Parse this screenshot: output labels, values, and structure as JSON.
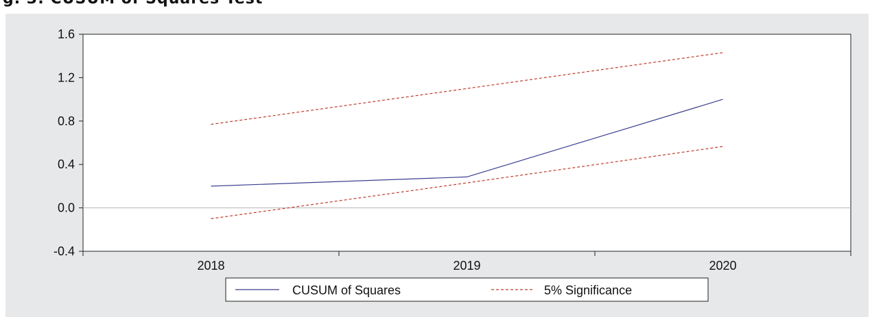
{
  "figure": {
    "caption_fragment": "g. 3: CUSUM of Squares Test"
  },
  "colors": {
    "panel_background": "#e7e8ea",
    "plot_background": "#ffffff",
    "cusum_line": "#3b3f8f",
    "significance_line": "#c0392b",
    "zero_line": "#b5b5b5"
  },
  "chart_data": {
    "type": "line",
    "title": "",
    "xlabel": "",
    "ylabel": "",
    "x": [
      2018,
      2019,
      2020
    ],
    "x_tick_labels": [
      "2018",
      "2019",
      "2020"
    ],
    "xlim": [
      2017.5,
      2020.5
    ],
    "ylim": [
      -0.4,
      1.6
    ],
    "y_ticks": [
      -0.4,
      0.0,
      0.4,
      0.8,
      1.2,
      1.6
    ],
    "y_tick_labels": [
      "-0.4",
      "0.0",
      "0.4",
      "0.8",
      "1.2",
      "1.6"
    ],
    "grid": false,
    "zero_line": true,
    "legend_position": "bottom-center",
    "series": [
      {
        "name": "CUSUM of Squares",
        "values": [
          0.2,
          0.285,
          1.0
        ],
        "style": "solid",
        "color": "#3b3f8f"
      },
      {
        "name": "5% Significance",
        "values": [
          0.77,
          1.1,
          1.43
        ],
        "style": "dashed",
        "color": "#c0392b"
      },
      {
        "name": "5% Significance",
        "values": [
          -0.1,
          0.23,
          0.565
        ],
        "style": "dashed",
        "color": "#c0392b"
      }
    ],
    "legend": [
      "CUSUM of Squares",
      "5% Significance"
    ]
  }
}
